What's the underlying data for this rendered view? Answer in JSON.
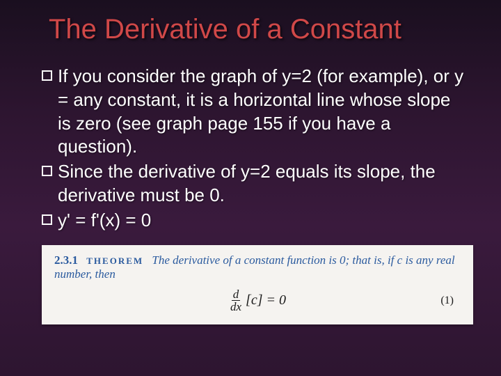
{
  "title": "The Derivative of a Constant",
  "bullets": [
    "If you consider the graph of y=2 (for example), or y = any constant, it is a horizontal line whose slope is zero (see graph page 155 if you have a question).",
    "Since the derivative of y=2 equals its slope, the derivative must be 0.",
    "y' = f'(x) = 0"
  ],
  "theorem": {
    "number": "2.3.1",
    "label": "THEOREM",
    "text_part1": "The derivative of a constant function is 0; that is, if c is any real number, then",
    "frac_top": "d",
    "frac_bottom": "dx",
    "formula_body": "[c] = 0",
    "eq_number": "(1)"
  },
  "colors": {
    "title_color": "#d04848",
    "text_color": "#ffffff",
    "theorem_bg": "#f5f3f0",
    "theorem_text": "#2a5a9e"
  }
}
